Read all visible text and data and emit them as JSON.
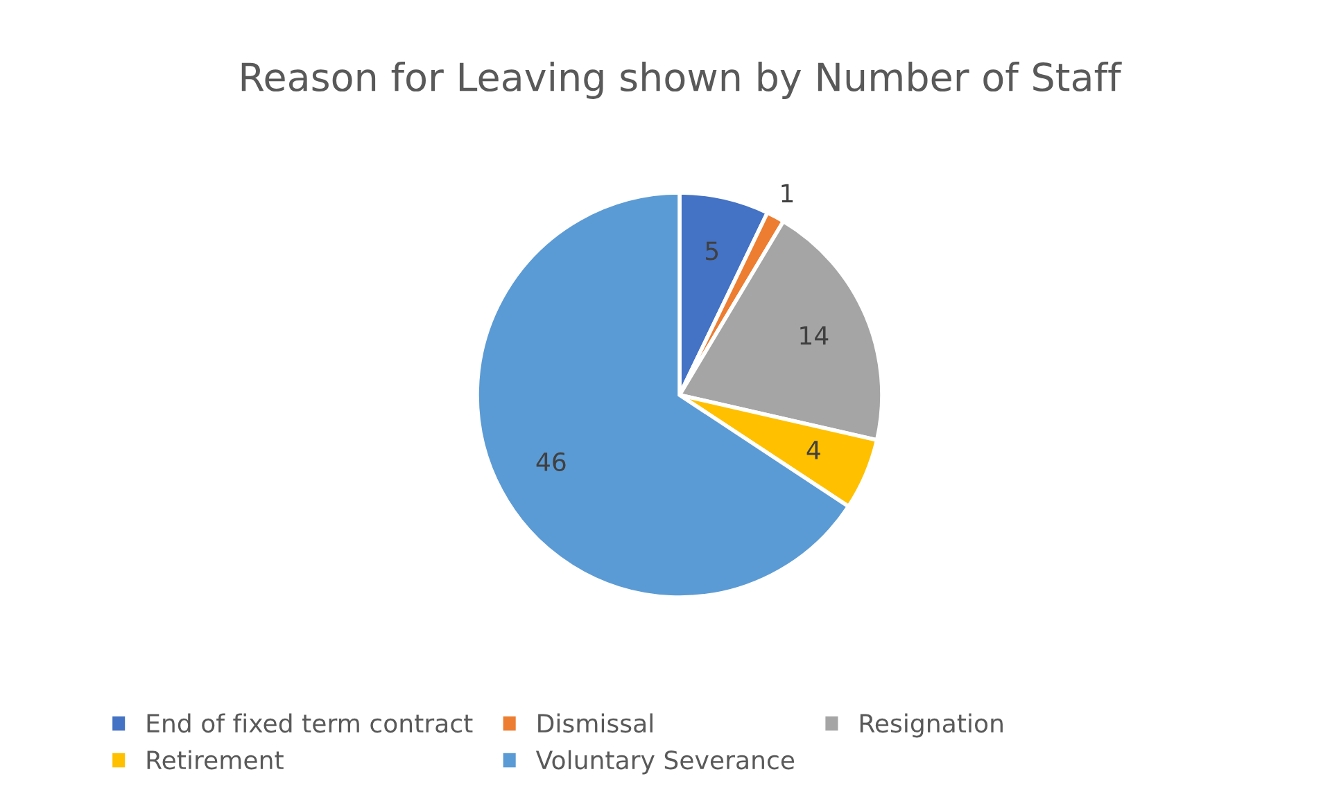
{
  "chart_data": {
    "type": "pie",
    "title": "Reason for Leaving shown by Number of Staff",
    "categories": [
      "End of fixed term contract",
      "Dismissal",
      "Resignation",
      "Retirement",
      "Voluntary Severance"
    ],
    "values": [
      5,
      1,
      14,
      4,
      46
    ],
    "colors": [
      "#4472c4",
      "#ed7d31",
      "#a5a5a5",
      "#ffc000",
      "#5b9bd5"
    ],
    "data_labels": true,
    "legend": "bottom"
  }
}
